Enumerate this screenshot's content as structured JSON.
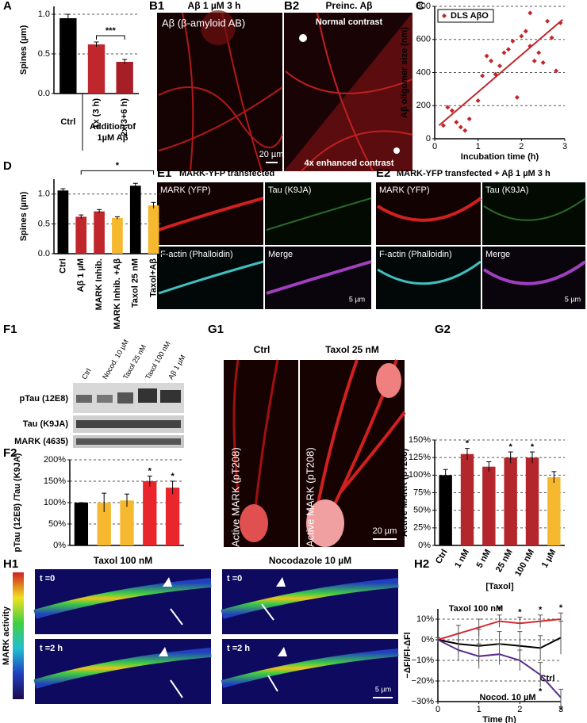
{
  "panel_labels": [
    "A",
    "B1",
    "B2",
    "C",
    "D",
    "E1",
    "E2",
    "F1",
    "F2",
    "G1",
    "G2",
    "H1",
    "H2"
  ],
  "images": {
    "B1": {
      "title": "Aβ 1 µM 3 h",
      "label": "Aβ (β-amyloid AB)",
      "scale": "20 µm"
    },
    "B2": {
      "title": "Preinc. Aβ",
      "top": "Normal contrast",
      "bottom": "4x enhanced contrast"
    },
    "E1": {
      "title": "MARK-YFP transfected",
      "quadrants": [
        "MARK (YFP)",
        "Tau (K9JA)",
        "F-actin (Phalloidin)",
        "Merge"
      ],
      "scale": "5 µm"
    },
    "E2": {
      "title": "MARK-YFP transfected + Aβ 1 µM 3 h",
      "quadrants": [
        "MARK (YFP)",
        "Tau (K9JA)",
        "F-actin (Phalloidin)",
        "Merge"
      ],
      "scale": "5 µm"
    },
    "F1": {
      "lanes": [
        "Ctrl",
        "Nocod. 10 µM",
        "Taxol 25 nM",
        "Taxol 100 nM",
        "Aβ 1 µM"
      ],
      "rows": [
        "pTau (12E8)",
        "Tau (K9JA)",
        "MARK (4635)"
      ]
    },
    "G1": {
      "columns": [
        "Ctrl",
        "Taxol 25 nM"
      ],
      "labels": [
        "Active MARK (pT208)",
        "Active MARK (pT208)"
      ],
      "scale": "20 µm"
    },
    "H1": {
      "columns": [
        "Taxol 100 nM",
        "Nocodazole 10 µM"
      ],
      "times": [
        "t =0",
        "t =2 h",
        "t =0",
        "t =2 h"
      ],
      "colorbar": "MARK activity",
      "scale": "5 µm"
    }
  },
  "chart_data": [
    {
      "type": "bar",
      "ylabel": "Spines (µm)",
      "categories": [
        "Ctrl",
        "1x (3 h)",
        "2x(3+6 h)"
      ],
      "group_label": [
        "Addition of",
        "1µM Aβ"
      ],
      "values": [
        0.95,
        0.62,
        0.4
      ],
      "errors": [
        0.05,
        0.03,
        0.03
      ],
      "colors": [
        "#000000",
        "#c0272d",
        "#a61f26"
      ],
      "ylim": [
        0,
        1.1
      ],
      "yticks": [
        {
          "value": 0,
          "label": "0.0"
        },
        {
          "value": 0.5,
          "label": "0.5"
        },
        {
          "value": 1,
          "label": "1.0"
        }
      ],
      "grid": true,
      "comparison": "***"
    },
    {
      "type": "scatter",
      "xlabel": "Incubation time (h)",
      "ylabel": "Aβ oligomer size (nm)",
      "name": "DLS AβO",
      "color": "#c0272d",
      "legend": "upper left",
      "x": [
        0.2,
        0.3,
        0.4,
        0.5,
        0.6,
        0.7,
        0.8,
        1.0,
        1.1,
        1.2,
        1.3,
        1.4,
        1.5,
        1.6,
        1.7,
        1.8,
        1.9,
        2.0,
        2.1,
        2.2,
        2.2,
        2.3,
        2.4,
        2.5,
        2.6,
        2.7,
        2.8,
        2.9
      ],
      "values": [
        80,
        190,
        170,
        100,
        70,
        50,
        120,
        230,
        380,
        500,
        470,
        390,
        440,
        520,
        540,
        590,
        250,
        620,
        650,
        560,
        760,
        470,
        520,
        460,
        710,
        610,
        410,
        700
      ],
      "trendline": {
        "x": [
          0.1,
          2.95
        ],
        "values": [
          80,
          720
        ]
      },
      "xlim": [
        0,
        3
      ],
      "xticks": [
        0,
        1,
        2,
        3
      ],
      "ylim": [
        0,
        800
      ],
      "yticks": [
        0,
        200,
        400,
        600,
        800
      ],
      "grid": true
    },
    {
      "type": "bar",
      "ylabel": "Spines (µm)",
      "categories": [
        "Ctrl",
        "Aβ 1 µM",
        "MARK Inhib.",
        "MARK Inhib. +Aβ",
        "Taxol 25 nM",
        "Taxol+Aβ"
      ],
      "values": [
        1.06,
        0.62,
        0.71,
        0.6,
        1.14,
        0.81
      ],
      "errors": [
        0.03,
        0.03,
        0.03,
        0.02,
        0.04,
        0.05
      ],
      "colors": [
        "#000000",
        "#c0272d",
        "#c0272d",
        "#f5b82e",
        "#000000",
        "#f5b82e"
      ],
      "ylim": [
        0,
        1.25
      ],
      "yticks": [
        {
          "value": 0,
          "label": "0.0"
        },
        {
          "value": 0.5,
          "label": "0.5"
        },
        {
          "value": 1,
          "label": "1.0"
        }
      ],
      "grid": true,
      "comparison": "*"
    },
    {
      "type": "bar",
      "ylabel": "pTau (12E8) /Tau (K9JA)",
      "values": [
        100,
        100,
        105,
        150,
        135
      ],
      "errors": [
        0,
        22,
        15,
        12,
        15
      ],
      "colors": [
        "#000000",
        "#f5b82e",
        "#f5b82e",
        "#e8262b",
        "#e8262b"
      ],
      "significance": [
        null,
        null,
        null,
        "*",
        "*"
      ],
      "ylim": [
        0,
        200
      ],
      "yticks": [
        {
          "value": 0,
          "label": "0%"
        },
        {
          "value": 50,
          "label": "50%"
        },
        {
          "value": 100,
          "label": "100%"
        },
        {
          "value": 150,
          "label": "150%"
        },
        {
          "value": 200,
          "label": "200%"
        }
      ],
      "grid": true
    },
    {
      "type": "bar",
      "ylabel": "Active MARK (pT208)",
      "xlabel": "[Taxol]",
      "categories": [
        "Ctrl",
        "1 nM",
        "5 nM",
        "25 nM",
        "100 nM",
        "1 µM"
      ],
      "values": [
        100,
        130,
        112,
        125,
        125,
        97
      ],
      "errors": [
        8,
        8,
        7,
        8,
        8,
        8
      ],
      "colors": [
        "#000000",
        "#b3262b",
        "#b3262b",
        "#b3262b",
        "#b3262b",
        "#f5b82e"
      ],
      "significance": [
        null,
        "*",
        null,
        "*",
        "*",
        null
      ],
      "ylim": [
        0,
        150
      ],
      "yticks": [
        {
          "value": 0,
          "label": "0%"
        },
        {
          "value": 25,
          "label": "25%"
        },
        {
          "value": 50,
          "label": "50%"
        },
        {
          "value": 75,
          "label": "75%"
        },
        {
          "value": 100,
          "label": "100%"
        },
        {
          "value": 125,
          "label": "125%"
        },
        {
          "value": 150,
          "label": "150%"
        }
      ],
      "grid": true
    },
    {
      "type": "line",
      "xlabel": "Time (h)",
      "ylabel": "−ΔFl/Fl-ΔFl",
      "x": [
        0,
        0.5,
        1,
        1.5,
        2,
        2.5,
        3
      ],
      "series": [
        {
          "name": "Taxol 100 nM",
          "color": "#d42a2f",
          "values": [
            0,
            3,
            6,
            9,
            8,
            9,
            10
          ],
          "errors": [
            1,
            4,
            4,
            3,
            3,
            3,
            3
          ],
          "significance": [
            null,
            null,
            null,
            "*",
            "*",
            "*",
            "*"
          ]
        },
        {
          "name": "Ctrl",
          "color": "#000000",
          "values": [
            0,
            -2,
            -3,
            -2,
            -3,
            -4,
            1
          ],
          "errors": [
            1,
            5,
            8,
            6,
            7,
            6,
            8
          ],
          "significance": [
            null,
            null,
            null,
            null,
            null,
            null,
            null
          ]
        },
        {
          "name": "Nocod. 10 µM",
          "color": "#5b2a8f",
          "values": [
            0,
            -5,
            -8,
            -7,
            -10,
            -17,
            -28
          ],
          "errors": [
            1,
            5,
            6,
            5,
            5,
            6,
            4
          ],
          "significance": [
            null,
            null,
            null,
            null,
            null,
            "*",
            "*"
          ]
        }
      ],
      "xlim": [
        0,
        3
      ],
      "xticks": [
        0,
        1,
        2,
        3
      ],
      "ylim": [
        -30,
        15
      ],
      "yticks": [
        {
          "value": -30,
          "label": "−30%"
        },
        {
          "value": -20,
          "label": "−20%"
        },
        {
          "value": -10,
          "label": "−10%"
        },
        {
          "value": 0,
          "label": "0%"
        },
        {
          "value": 10,
          "label": "10%"
        }
      ],
      "grid": true
    }
  ]
}
